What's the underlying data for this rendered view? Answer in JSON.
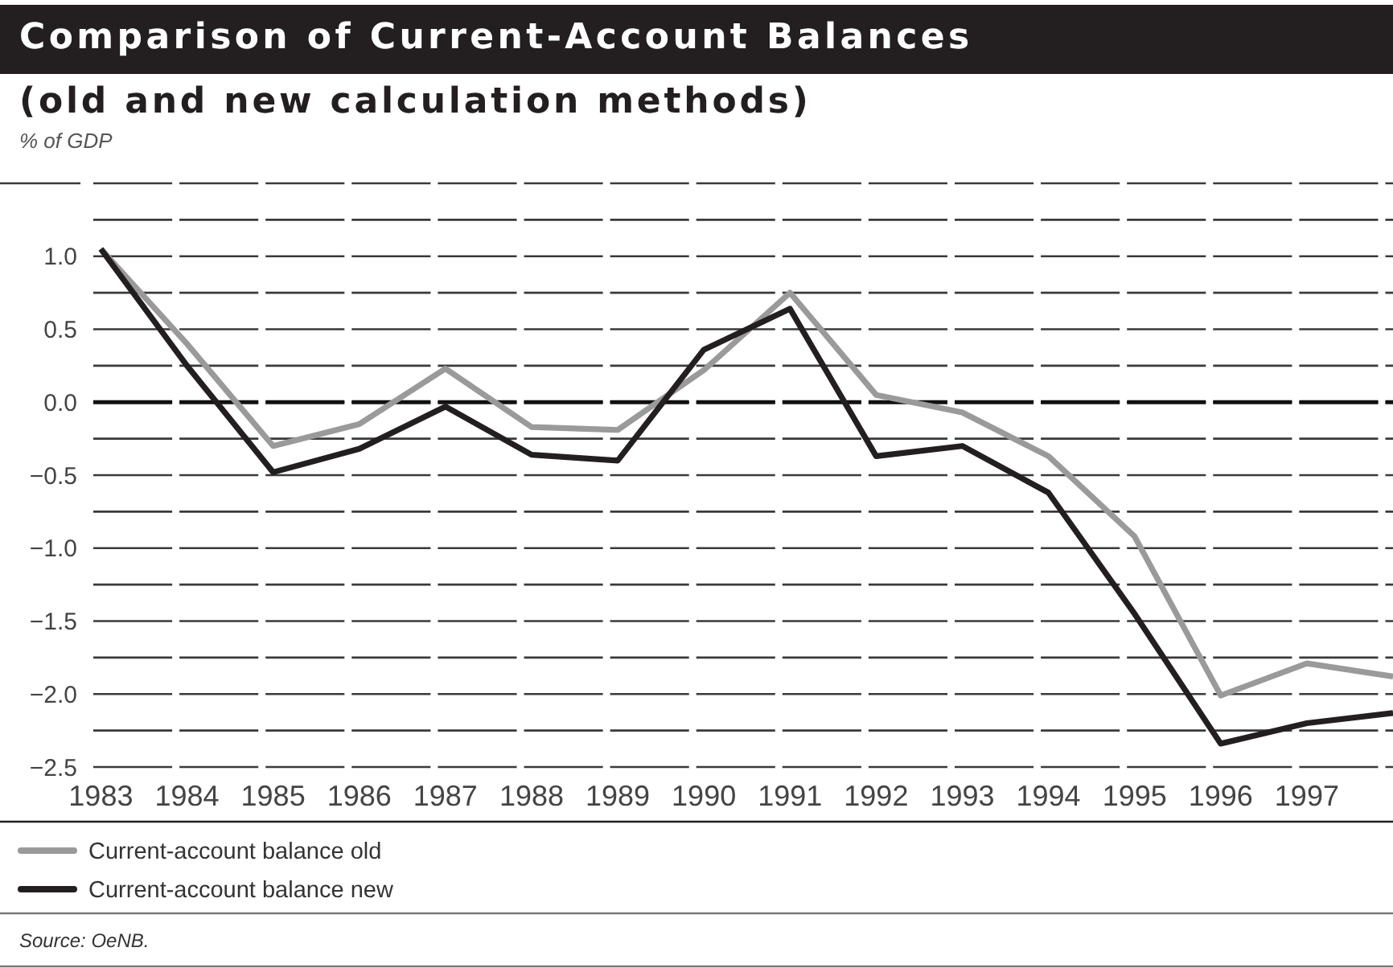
{
  "chart_data": {
    "type": "line",
    "title": "Comparison of Current-Account Balances",
    "subtitle": "(old and new calculation methods)",
    "ylabel": "% of GDP",
    "categories": [
      "1983",
      "1984",
      "1985",
      "1986",
      "1987",
      "1988",
      "1989",
      "1990",
      "1991",
      "1992",
      "1993",
      "1994",
      "1995",
      "1996",
      "1997",
      null
    ],
    "series": [
      {
        "name": "Current-account balance old",
        "color": "#9a9a9a",
        "values": [
          1.05,
          0.4,
          -0.3,
          -0.15,
          0.23,
          -0.17,
          -0.19,
          0.22,
          0.75,
          0.05,
          -0.07,
          -0.37,
          -0.92,
          -2.01,
          -1.79,
          -1.88
        ]
      },
      {
        "name": "Current-account balance new",
        "color": "#231f20",
        "values": [
          1.05,
          0.25,
          -0.48,
          -0.32,
          -0.03,
          -0.36,
          -0.4,
          0.36,
          0.64,
          -0.37,
          -0.3,
          -0.62,
          -1.45,
          -2.34,
          -2.2,
          -2.13
        ]
      }
    ],
    "ylim": [
      -2.5,
      1.5
    ],
    "yticks": [
      {
        "value": -2.5,
        "label": "−2.5"
      },
      {
        "value": -2.25,
        "label": null
      },
      {
        "value": -2,
        "label": "−2.0"
      },
      {
        "value": -1.75,
        "label": null
      },
      {
        "value": -1.5,
        "label": "−1.5"
      },
      {
        "value": -1.25,
        "label": null
      },
      {
        "value": -1,
        "label": "−1.0"
      },
      {
        "value": -0.75,
        "label": null
      },
      {
        "value": -0.5,
        "label": "−0.5"
      },
      {
        "value": -0.25,
        "label": null
      },
      {
        "value": 0,
        "label": "0.0"
      },
      {
        "value": 0.25,
        "label": null
      },
      0.5,
      {
        "value": 0.75,
        "label": null
      },
      {
        "value": 1,
        "label": "1.0"
      },
      {
        "value": 1.25,
        "label": null
      },
      {
        "value": 1.5,
        "label": null
      }
    ],
    "ref_lines": [
      {
        "axis": "y",
        "value": 0,
        "color": "#111111"
      }
    ],
    "grid": "y",
    "legend": "bottom",
    "annotations": [
      "Source: OeNB."
    ]
  }
}
